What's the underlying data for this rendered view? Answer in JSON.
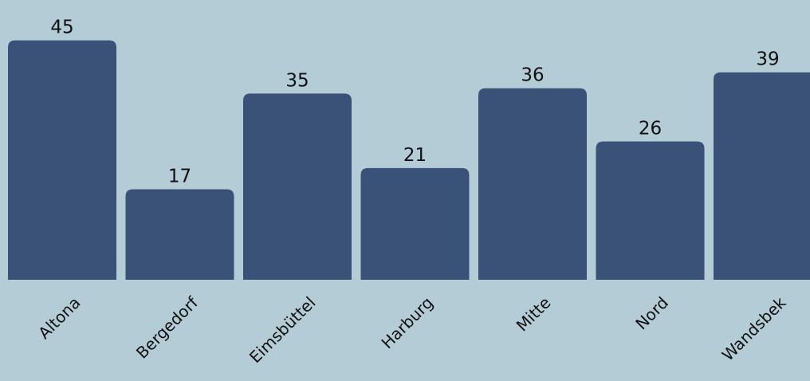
{
  "chart_data": {
    "type": "bar",
    "categories": [
      "Altona",
      "Bergedorf",
      "Eimsbüttel",
      "Harburg",
      "Mitte",
      "Nord",
      "Wandsbek"
    ],
    "values": [
      45,
      17,
      35,
      21,
      36,
      26,
      39
    ],
    "title": "",
    "xlabel": "",
    "ylabel": "",
    "ylim": [
      0,
      46
    ],
    "grid": false,
    "legend": "none",
    "bar_color": "#3a5278",
    "background_color": "#b3ccd6",
    "text_color": "#111111"
  }
}
